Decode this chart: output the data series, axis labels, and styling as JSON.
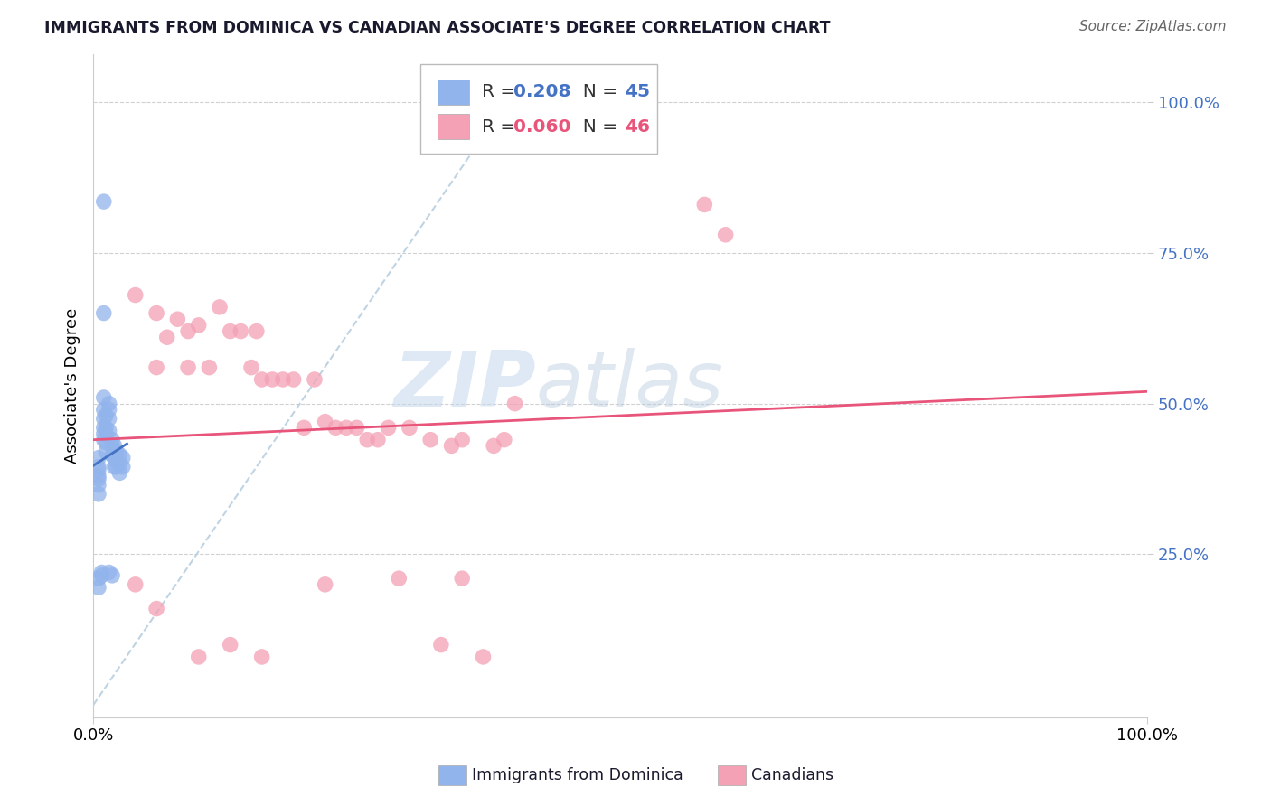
{
  "title": "IMMIGRANTS FROM DOMINICA VS CANADIAN ASSOCIATE'S DEGREE CORRELATION CHART",
  "source": "Source: ZipAtlas.com",
  "ylabel": "Associate's Degree",
  "ytick_labels": [
    "25.0%",
    "50.0%",
    "75.0%",
    "100.0%"
  ],
  "ytick_values": [
    0.25,
    0.5,
    0.75,
    1.0
  ],
  "xlim": [
    0.0,
    1.0
  ],
  "ylim": [
    -0.02,
    1.08
  ],
  "legend_R1": "0.208",
  "legend_N1": "45",
  "legend_R2": "0.060",
  "legend_N2": "46",
  "color_blue": "#92b4ec",
  "color_pink": "#f4a0b5",
  "color_blue_text": "#4472c4",
  "color_pink_text": "#e8547a",
  "trendline_blue_color": "#4472c4",
  "trendline_pink_color": "#e8547a",
  "diagonal_color": "#b8cfe0",
  "watermark_zip": "ZIP",
  "watermark_atlas": "atlas",
  "blue_scatter_x": [
    0.01,
    0.01,
    0.01,
    0.01,
    0.01,
    0.01,
    0.01,
    0.01,
    0.012,
    0.012,
    0.012,
    0.012,
    0.012,
    0.015,
    0.015,
    0.015,
    0.015,
    0.018,
    0.018,
    0.018,
    0.02,
    0.02,
    0.02,
    0.02,
    0.022,
    0.022,
    0.022,
    0.025,
    0.025,
    0.025,
    0.028,
    0.028,
    0.005,
    0.005,
    0.005,
    0.005,
    0.005,
    0.005,
    0.005,
    0.005,
    0.005,
    0.008,
    0.008,
    0.015,
    0.018
  ],
  "blue_scatter_y": [
    0.835,
    0.65,
    0.51,
    0.49,
    0.475,
    0.46,
    0.45,
    0.44,
    0.48,
    0.46,
    0.45,
    0.435,
    0.42,
    0.5,
    0.49,
    0.475,
    0.455,
    0.44,
    0.43,
    0.415,
    0.43,
    0.42,
    0.41,
    0.395,
    0.42,
    0.405,
    0.395,
    0.415,
    0.4,
    0.385,
    0.41,
    0.395,
    0.41,
    0.395,
    0.38,
    0.365,
    0.35,
    0.39,
    0.375,
    0.21,
    0.195,
    0.22,
    0.215,
    0.22,
    0.215
  ],
  "pink_scatter_x": [
    0.04,
    0.06,
    0.06,
    0.07,
    0.08,
    0.09,
    0.09,
    0.1,
    0.11,
    0.12,
    0.13,
    0.14,
    0.15,
    0.155,
    0.16,
    0.17,
    0.18,
    0.19,
    0.2,
    0.21,
    0.22,
    0.23,
    0.24,
    0.25,
    0.26,
    0.27,
    0.28,
    0.3,
    0.32,
    0.34,
    0.35,
    0.38,
    0.39,
    0.4,
    0.58,
    0.6,
    0.04,
    0.06,
    0.1,
    0.13,
    0.16,
    0.22,
    0.33,
    0.37,
    0.29,
    0.35
  ],
  "pink_scatter_y": [
    0.68,
    0.65,
    0.56,
    0.61,
    0.64,
    0.56,
    0.62,
    0.63,
    0.56,
    0.66,
    0.62,
    0.62,
    0.56,
    0.62,
    0.54,
    0.54,
    0.54,
    0.54,
    0.46,
    0.54,
    0.47,
    0.46,
    0.46,
    0.46,
    0.44,
    0.44,
    0.46,
    0.46,
    0.44,
    0.43,
    0.44,
    0.43,
    0.44,
    0.5,
    0.83,
    0.78,
    0.2,
    0.16,
    0.08,
    0.1,
    0.08,
    0.2,
    0.1,
    0.08,
    0.21,
    0.21
  ]
}
